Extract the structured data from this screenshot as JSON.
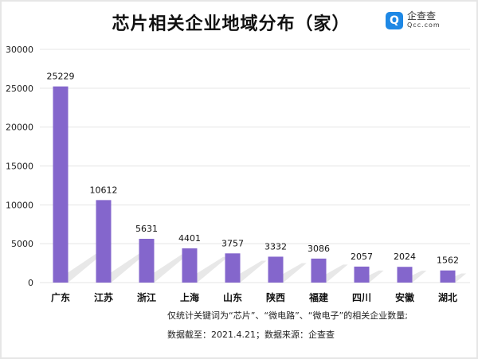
{
  "title": "芯片相关企业地域分布（家）",
  "logo": {
    "cn": "企查查",
    "en": "Qcc.com",
    "badge": "Q"
  },
  "chart_data": {
    "type": "bar",
    "title": "芯片相关企业地域分布（家）",
    "categories": [
      "广东",
      "江苏",
      "浙江",
      "上海",
      "山东",
      "陕西",
      "福建",
      "四川",
      "安徽",
      "湖北"
    ],
    "values": [
      25229,
      10612,
      5631,
      4401,
      3757,
      3332,
      3086,
      2057,
      2024,
      1562
    ],
    "yticks": [
      0,
      5000,
      10000,
      15000,
      20000,
      25000,
      30000
    ],
    "ylim": [
      0,
      30000
    ],
    "xlabel": "",
    "ylabel": "",
    "grid": true,
    "bar_color": "#8466cc"
  },
  "notes": [
    "仅统计关键词为“芯片”、“微电路”、“微电子”的相关企业数量;",
    "数据截至：2021.4.21；数据来源：企查查"
  ]
}
